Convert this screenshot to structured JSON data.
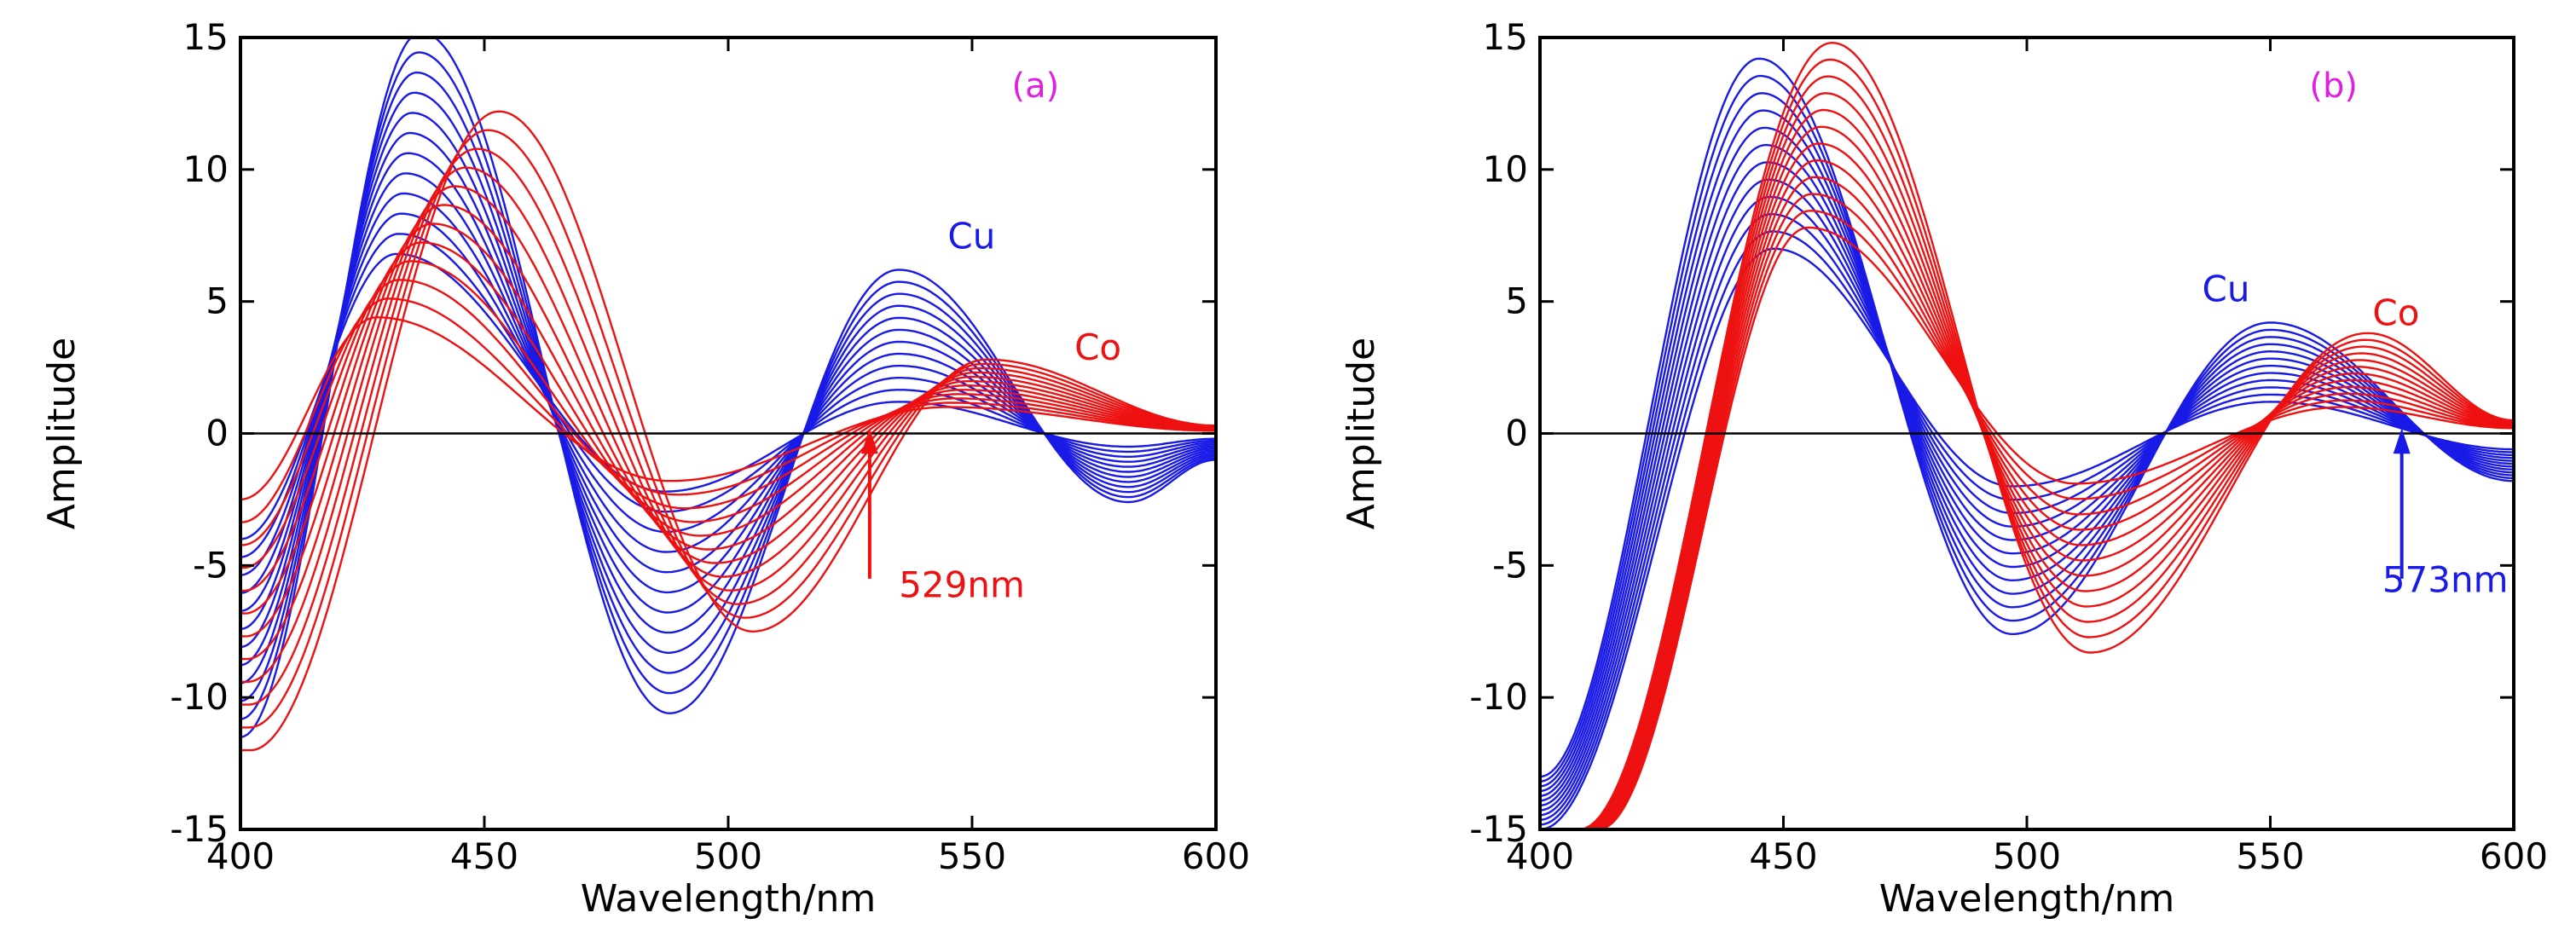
{
  "chart_data": [
    {
      "id": "a",
      "type": "line",
      "panel_label": "(a)",
      "title": "",
      "xlabel": "Wavelength/nm",
      "ylabel": "Amplitude",
      "xlim": [
        400,
        600
      ],
      "ylim": [
        -15,
        15
      ],
      "x_ticks": [
        400,
        450,
        500,
        550,
        600
      ],
      "y_ticks": [
        15,
        10,
        5,
        0,
        -5,
        -10,
        -15
      ],
      "zero_line": true,
      "grid": false,
      "series_groups": [
        {
          "name": "Cu",
          "color": "#1a1ae6",
          "count": 12,
          "note": "family of derivative spectra with increasing amplitude",
          "extrema_of_largest_curve": [
            {
              "x": 400,
              "y": -11.5
            },
            {
              "x": 437,
              "y": 15.2
            },
            {
              "x": 488,
              "y": -10.6
            },
            {
              "x": 535,
              "y": 6.2
            },
            {
              "x": 582,
              "y": -2.6
            },
            {
              "x": 600,
              "y": -1.0
            }
          ],
          "extrema_of_smallest_curve": [
            {
              "x": 400,
              "y": -4.0
            },
            {
              "x": 432,
              "y": 6.8
            },
            {
              "x": 487,
              "y": -2.2
            },
            {
              "x": 535,
              "y": 1.2
            },
            {
              "x": 582,
              "y": -0.5
            },
            {
              "x": 600,
              "y": -0.2
            }
          ]
        },
        {
          "name": "Co",
          "color": "#ee1111",
          "count": 12,
          "note": "family of derivative spectra with increasing amplitude",
          "extrema_of_largest_curve": [
            {
              "x": 402,
              "y": -12.0
            },
            {
              "x": 453,
              "y": 12.2
            },
            {
              "x": 505,
              "y": -7.5
            },
            {
              "x": 553,
              "y": 2.8
            },
            {
              "x": 600,
              "y": 0.3
            }
          ],
          "extrema_of_smallest_curve": [
            {
              "x": 400,
              "y": -2.5
            },
            {
              "x": 428,
              "y": 4.4
            },
            {
              "x": 488,
              "y": -1.8
            },
            {
              "x": 545,
              "y": 1.0
            },
            {
              "x": 600,
              "y": 0.1
            }
          ]
        }
      ],
      "annotations": [
        {
          "text": "Cu",
          "x": 545,
          "y": 7.0,
          "color": "#1a1ae6"
        },
        {
          "text": "Co",
          "x": 571,
          "y": 2.8,
          "color": "#ee1111"
        },
        {
          "text": "529nm",
          "x": 535,
          "y": -6.2,
          "color": "#ee1111",
          "arrow_x": 529,
          "arrow_from_y": -5.5,
          "arrow_to_y": 0.2
        }
      ]
    },
    {
      "id": "b",
      "type": "line",
      "panel_label": "(b)",
      "title": "",
      "xlabel": "Wavelength/nm",
      "ylabel": "Amplitude",
      "xlim": [
        400,
        600
      ],
      "ylim": [
        -15,
        15
      ],
      "x_ticks": [
        400,
        450,
        500,
        550,
        600
      ],
      "y_ticks": [
        15,
        10,
        5,
        0,
        -5,
        -10,
        -15
      ],
      "zero_line": true,
      "grid": false,
      "series_groups": [
        {
          "name": "Cu",
          "color": "#1a1ae6",
          "count": 12,
          "note": "family of derivative spectra with increasing amplitude",
          "extrema_of_largest_curve": [
            {
              "x": 400,
              "y": -13.0
            },
            {
              "x": 445,
              "y": 14.2
            },
            {
              "x": 497,
              "y": -7.6
            },
            {
              "x": 550,
              "y": 4.2
            },
            {
              "x": 600,
              "y": -1.8
            }
          ],
          "extrema_of_smallest_curve": [
            {
              "x": 400,
              "y": -15.0
            },
            {
              "x": 448,
              "y": 7.0
            },
            {
              "x": 497,
              "y": -2.0
            },
            {
              "x": 550,
              "y": 1.2
            },
            {
              "x": 600,
              "y": -0.6
            }
          ]
        },
        {
          "name": "Co",
          "color": "#ee1111",
          "count": 12,
          "note": "family of derivative spectra with increasing amplitude",
          "extrema_of_largest_curve": [
            {
              "x": 408,
              "y": -15.0
            },
            {
              "x": 460,
              "y": 14.8
            },
            {
              "x": 513,
              "y": -8.3
            },
            {
              "x": 570,
              "y": 3.8
            },
            {
              "x": 600,
              "y": 0.5
            }
          ],
          "extrema_of_smallest_curve": [
            {
              "x": 412,
              "y": -15.0
            },
            {
              "x": 455,
              "y": 7.8
            },
            {
              "x": 510,
              "y": -1.9
            },
            {
              "x": 565,
              "y": 1.0
            },
            {
              "x": 600,
              "y": 0.2
            }
          ]
        }
      ],
      "annotations": [
        {
          "text": "Cu",
          "x": 536,
          "y": 5.0,
          "color": "#1a1ae6"
        },
        {
          "text": "Co",
          "x": 571,
          "y": 4.1,
          "color": "#ee1111"
        },
        {
          "text": "573nm",
          "x": 573,
          "y": -6.0,
          "color": "#1a1ae6",
          "arrow_x": 577,
          "arrow_from_y": -5.5,
          "arrow_to_y": 0.2
        }
      ]
    }
  ]
}
